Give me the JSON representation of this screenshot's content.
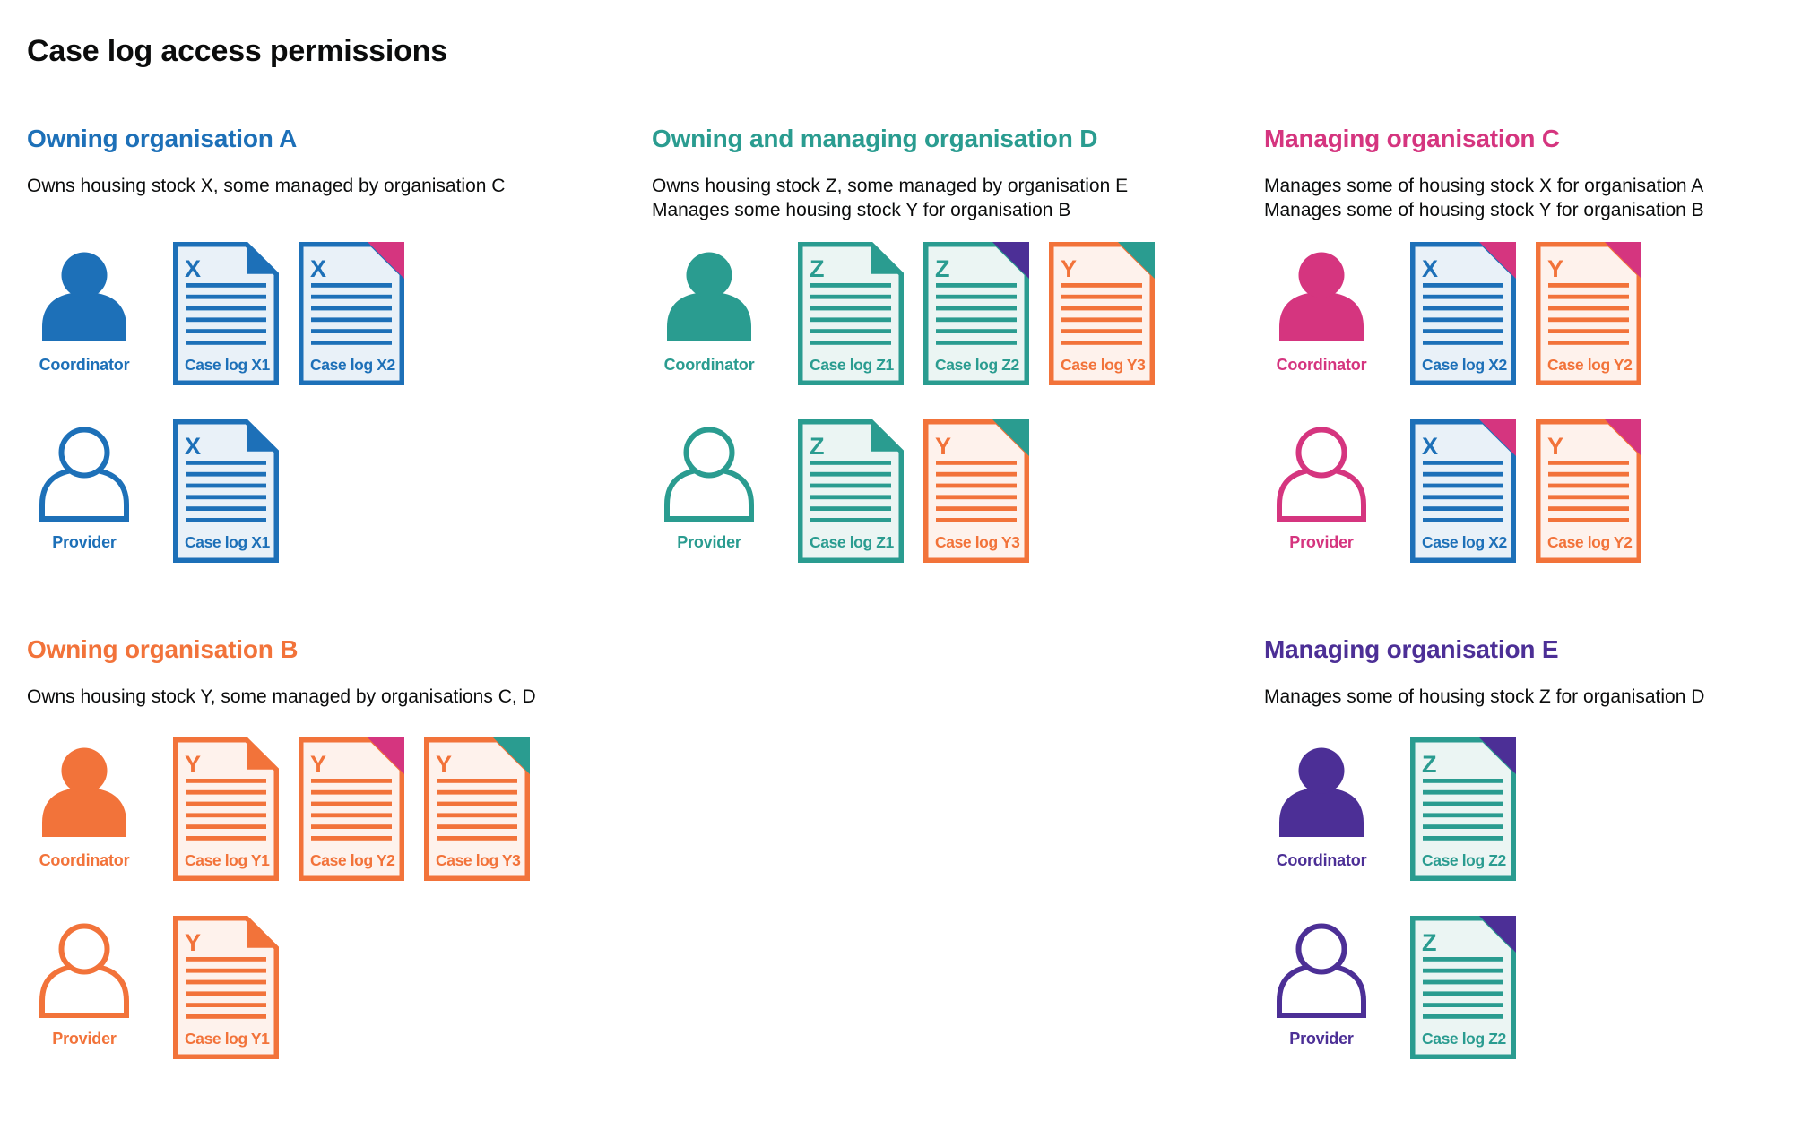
{
  "page": {
    "title": "Case log access permissions",
    "background": "#ffffff"
  },
  "palette": {
    "blue": "#1d70b8",
    "teal": "#2a9c90",
    "pink": "#d5357f",
    "orange": "#f2733a",
    "purple": "#4c2f96",
    "text": "#0b0c0c",
    "blue_tint": "#e9f1f8",
    "teal_tint": "#ebf5f3",
    "orange_tint": "#fef2ec"
  },
  "sections": [
    {
      "id": "owning-organisation-a",
      "title": "Owning organisation A",
      "color": "blue",
      "description": [
        "Owns housing stock X, some managed by organisation C"
      ],
      "rows": [
        {
          "role": "Coordinator",
          "person_icon": "person-filled-icon",
          "docs": [
            {
              "letter": "X",
              "label": "Case log X1",
              "doc_color": "blue",
              "fold_color": "blue"
            },
            {
              "letter": "X",
              "label": "Case log X2",
              "doc_color": "blue",
              "fold_color": "pink"
            }
          ]
        },
        {
          "role": "Provider",
          "person_icon": "person-outline-icon",
          "docs": [
            {
              "letter": "X",
              "label": "Case log X1",
              "doc_color": "blue",
              "fold_color": "blue"
            }
          ]
        }
      ]
    },
    {
      "id": "owning-and-managing-organisation-d",
      "title": "Owning and managing organisation D",
      "color": "teal",
      "description": [
        "Owns housing stock Z, some managed by organisation E",
        "Manages some housing stock Y for organisation B"
      ],
      "rows": [
        {
          "role": "Coordinator",
          "person_icon": "person-filled-icon",
          "docs": [
            {
              "letter": "Z",
              "label": "Case log Z1",
              "doc_color": "teal",
              "fold_color": "teal"
            },
            {
              "letter": "Z",
              "label": "Case log Z2",
              "doc_color": "teal",
              "fold_color": "purple"
            },
            {
              "letter": "Y",
              "label": "Case log Y3",
              "doc_color": "orange",
              "fold_color": "teal"
            }
          ]
        },
        {
          "role": "Provider",
          "person_icon": "person-outline-icon",
          "docs": [
            {
              "letter": "Z",
              "label": "Case log Z1",
              "doc_color": "teal",
              "fold_color": "teal"
            },
            {
              "letter": "Y",
              "label": "Case log Y3",
              "doc_color": "orange",
              "fold_color": "teal"
            }
          ]
        }
      ]
    },
    {
      "id": "managing-organisation-c",
      "title": "Managing organisation C",
      "color": "pink",
      "description": [
        "Manages some of housing stock X for organisation A",
        "Manages some of housing stock Y for organisation B"
      ],
      "rows": [
        {
          "role": "Coordinator",
          "person_icon": "person-filled-icon",
          "docs": [
            {
              "letter": "X",
              "label": "Case log X2",
              "doc_color": "blue",
              "fold_color": "pink"
            },
            {
              "letter": "Y",
              "label": "Case log Y2",
              "doc_color": "orange",
              "fold_color": "pink"
            }
          ]
        },
        {
          "role": "Provider",
          "person_icon": "person-outline-icon",
          "docs": [
            {
              "letter": "X",
              "label": "Case log X2",
              "doc_color": "blue",
              "fold_color": "pink"
            },
            {
              "letter": "Y",
              "label": "Case log Y2",
              "doc_color": "orange",
              "fold_color": "pink"
            }
          ]
        }
      ]
    },
    {
      "id": "owning-organisation-b",
      "title": "Owning organisation B",
      "color": "orange",
      "description": [
        "Owns housing stock Y, some managed by organisations C, D"
      ],
      "rows": [
        {
          "role": "Coordinator",
          "person_icon": "person-filled-icon",
          "docs": [
            {
              "letter": "Y",
              "label": "Case log Y1",
              "doc_color": "orange",
              "fold_color": "orange"
            },
            {
              "letter": "Y",
              "label": "Case log Y2",
              "doc_color": "orange",
              "fold_color": "pink"
            },
            {
              "letter": "Y",
              "label": "Case log Y3",
              "doc_color": "orange",
              "fold_color": "teal"
            }
          ]
        },
        {
          "role": "Provider",
          "person_icon": "person-outline-icon",
          "docs": [
            {
              "letter": "Y",
              "label": "Case log Y1",
              "doc_color": "orange",
              "fold_color": "orange"
            }
          ]
        }
      ]
    },
    {
      "id": "managing-organisation-e",
      "title": "Managing organisation E",
      "color": "purple",
      "description": [
        "Manages some of housing stock Z for organisation D"
      ],
      "rows": [
        {
          "role": "Coordinator",
          "person_icon": "person-filled-icon",
          "docs": [
            {
              "letter": "Z",
              "label": "Case log Z2",
              "doc_color": "teal",
              "fold_color": "purple"
            }
          ]
        },
        {
          "role": "Provider",
          "person_icon": "person-outline-icon",
          "docs": [
            {
              "letter": "Z",
              "label": "Case log Z2",
              "doc_color": "teal",
              "fold_color": "purple"
            }
          ]
        }
      ]
    }
  ]
}
